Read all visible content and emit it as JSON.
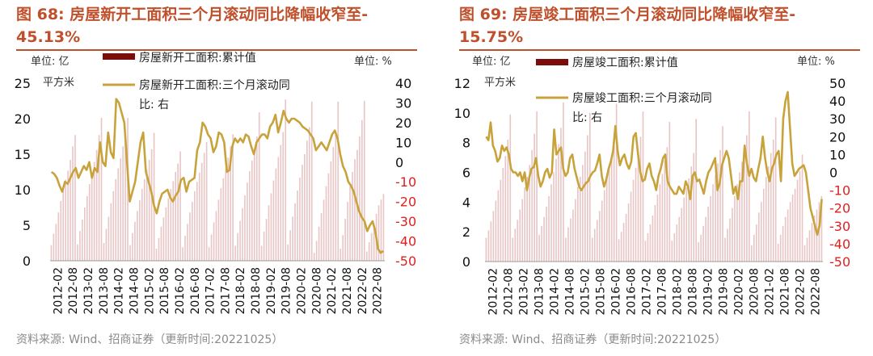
{
  "charts": [
    {
      "title_line1": "图 68:  房屋新开工面积三个月滚动同比降幅收窄至-",
      "title_line2": "45.13%",
      "source": "资料来源:  Wind、招商证券（更新时间:20221025）",
      "left_unit_label": "单位:  亿",
      "left_unit_label2": "平方米",
      "right_unit_label": "单位:  %",
      "legend_bar": "房屋新开工面积:累计值",
      "legend_line_1": "房屋新开工面积:三个月滚动同",
      "legend_line_2": "比:  右"
    },
    {
      "title_line1": "图 69:  房屋竣工面积三个月滚动同比降幅收窄至-",
      "title_line2": "15.75%",
      "source": "资料来源:  Wind、招商证券（更新时间:20221025）",
      "left_unit_label": "单位:  亿",
      "left_unit_label2": "平方米",
      "right_unit_label": "单位:  %",
      "legend_bar": "房屋竣工面积:累计值",
      "legend_line_1": "房屋竣工面积:三个月滚动同",
      "legend_line_2": "比:  右"
    }
  ],
  "chart_data": [
    {
      "type": "bar+line",
      "x_labels": [
        "2012-02",
        "2012-08",
        "2013-02",
        "2013-08",
        "2014-02",
        "2014-08",
        "2015-02",
        "2015-08",
        "2016-02",
        "2016-08",
        "2017-02",
        "2017-08",
        "2018-02",
        "2018-08",
        "2019-02",
        "2019-08",
        "2020-02",
        "2020-08",
        "2021-02",
        "2021-08",
        "2022-02",
        "2022-08"
      ],
      "ylim_left": [
        0,
        25
      ],
      "yticks_left": [
        0,
        5,
        10,
        15,
        20,
        25
      ],
      "ylim_right": [
        -50,
        40
      ],
      "yticks_right": [
        40,
        30,
        20,
        10,
        0,
        -10,
        -20,
        -30,
        -40,
        -50
      ],
      "series": [
        {
          "name": "房屋新开工面积:累计值",
          "axis": "left",
          "color": "#7b0d0d",
          "values": [
            2.2,
            3.8,
            5.2,
            6.8,
            8.4,
            10.0,
            11.4,
            12.7,
            14.2,
            16.1,
            17.7,
            2.3,
            4.2,
            5.8,
            7.5,
            9.1,
            10.8,
            12.4,
            13.9,
            15.6,
            17.7,
            20.1,
            2.5,
            4.5,
            6.2,
            8.1,
            9.8,
            11.5,
            13.0,
            14.4,
            16.1,
            18.0,
            20.1,
            2.2,
            3.9,
            5.5,
            7.0,
            8.5,
            10.1,
            11.5,
            12.8,
            14.2,
            15.7,
            18.0,
            1.7,
            3.2,
            4.8,
            6.1,
            7.5,
            8.8,
            10.1,
            11.2,
            12.5,
            13.7,
            15.4,
            1.9,
            3.5,
            5.2,
            6.8,
            8.3,
            9.8,
            11.1,
            12.4,
            13.8,
            15.2,
            16.7,
            1.9,
            3.7,
            5.4,
            7.0,
            8.6,
            10.2,
            11.6,
            12.9,
            14.5,
            16.1,
            17.8,
            2.1,
            3.9,
            5.6,
            7.4,
            9.2,
            11.0,
            12.6,
            14.1,
            15.8,
            17.5,
            20.9,
            2.1,
            4.1,
            5.9,
            7.8,
            9.5,
            11.3,
            13.0,
            14.6,
            16.3,
            18.1,
            22.7,
            2.3,
            4.3,
            6.2,
            8.1,
            9.9,
            11.7,
            13.5,
            15.0,
            16.9,
            18.8,
            22.4,
            1.1,
            2.8,
            4.8,
            6.7,
            8.6,
            10.5,
            12.3,
            14.0,
            16.0,
            18.0,
            22.4,
            1.7,
            3.6,
            5.9,
            8.3,
            10.5,
            12.5,
            14.3,
            15.6,
            17.5,
            19.8,
            22.5,
            1.3,
            2.6,
            3.9,
            5.2,
            6.6,
            7.8,
            8.6,
            9.4
          ]
        },
        {
          "name": "房屋新开工面积:三个月滚动同比:右",
          "axis": "right",
          "color": "#c8a33c",
          "values": [
            -5,
            -6,
            -8,
            -12,
            -15,
            -10,
            -11,
            -8,
            -5,
            -3,
            -8,
            -5,
            -2,
            -4,
            0,
            -8,
            -3,
            -5,
            10,
            0,
            -2,
            15,
            5,
            2,
            32,
            30,
            25,
            20,
            0,
            -20,
            -15,
            -10,
            0,
            10,
            15,
            -5,
            -10,
            -15,
            -22,
            -26,
            -20,
            -16,
            -15,
            -14,
            -18,
            -20,
            -17,
            -15,
            -9,
            -8,
            -15,
            -10,
            -9,
            -8,
            6,
            10,
            20,
            18,
            14,
            12,
            5,
            8,
            15,
            14,
            10,
            -5,
            -4,
            8,
            12,
            10,
            12,
            10,
            14,
            13,
            8,
            4,
            10,
            12,
            14,
            14,
            12,
            18,
            20,
            24,
            15,
            20,
            26,
            22,
            20,
            22,
            22,
            21,
            20,
            18,
            17,
            16,
            14,
            12,
            6,
            8,
            10,
            8,
            6,
            10,
            14,
            16,
            12,
            4,
            -2,
            -5,
            -10,
            -12,
            -15,
            -20,
            -25,
            -28,
            -30,
            -35,
            -32,
            -30,
            -35,
            -44,
            -46,
            -45
          ]
        }
      ]
    },
    {
      "type": "bar+line",
      "x_labels": [
        "2012-02",
        "2012-08",
        "2013-02",
        "2013-08",
        "2014-02",
        "2014-08",
        "2015-02",
        "2015-08",
        "2016-02",
        "2016-08",
        "2017-02",
        "2017-08",
        "2018-02",
        "2018-08",
        "2019-02",
        "2019-08",
        "2020-02",
        "2020-08",
        "2021-02",
        "2021-08",
        "2022-02",
        "2022-08"
      ],
      "ylim_left": [
        0,
        12
      ],
      "yticks_left": [
        0,
        2,
        4,
        6,
        8,
        10,
        12
      ],
      "ylim_right": [
        -50,
        50
      ],
      "yticks_right": [
        50,
        40,
        30,
        20,
        10,
        0,
        -10,
        -20,
        -30,
        -40,
        -50
      ],
      "series": [
        {
          "name": "房屋竣工面积:累计值",
          "axis": "left",
          "color": "#7b0d0d",
          "values": [
            1.6,
            2.1,
            2.7,
            3.4,
            4.1,
            4.8,
            5.5,
            6.3,
            7.1,
            8.2,
            9.9,
            1.6,
            2.2,
            2.8,
            3.5,
            4.2,
            5.0,
            5.7,
            6.5,
            7.5,
            8.6,
            10.1,
            1.8,
            2.4,
            3.0,
            3.7,
            4.4,
            5.2,
            6.0,
            6.9,
            7.9,
            9.0,
            10.7,
            1.6,
            2.3,
            2.9,
            3.5,
            4.2,
            5.0,
            5.7,
            6.5,
            7.4,
            8.5,
            10.0,
            1.6,
            2.2,
            2.8,
            3.4,
            4.1,
            4.8,
            5.5,
            6.3,
            7.2,
            8.4,
            10.6,
            1.5,
            2.0,
            2.6,
            3.2,
            3.9,
            4.7,
            5.5,
            6.3,
            7.3,
            8.4,
            10.1,
            1.4,
            1.9,
            2.5,
            3.1,
            3.8,
            4.5,
            5.2,
            5.9,
            6.8,
            7.7,
            9.4,
            1.4,
            1.9,
            2.5,
            3.0,
            3.6,
            4.3,
            5.0,
            5.6,
            6.4,
            7.3,
            9.6,
            1.3,
            1.8,
            2.4,
            3.0,
            3.7,
            4.4,
            5.2,
            5.8,
            6.6,
            7.5,
            9.1,
            1.6,
            2.2,
            2.9,
            3.6,
            4.4,
            5.2,
            6.0,
            6.7,
            7.6,
            8.5,
            10.1,
            1.1,
            1.8,
            2.5,
            3.3,
            4.0,
            4.9,
            5.7,
            6.4,
            7.3,
            8.2,
            9.7,
            1.2,
            1.8,
            2.4,
            3.0,
            3.5,
            4.0,
            4.5,
            4.9,
            5.5,
            6.1,
            7.2,
            1.1,
            1.6,
            2.1,
            2.6,
            3.1,
            3.5,
            4.0,
            4.4
          ]
        },
        {
          "name": "房屋竣工面积:三个月滚动同比:右",
          "axis": "right",
          "color": "#c8a33c",
          "values": [
            20,
            18,
            28,
            15,
            12,
            6,
            8,
            15,
            12,
            14,
            10,
            2,
            0,
            0,
            -2,
            0,
            -5,
            0,
            -10,
            -3,
            2,
            3,
            8,
            -2,
            -8,
            -5,
            0,
            2,
            -3,
            0,
            24,
            10,
            12,
            14,
            2,
            -2,
            0,
            8,
            10,
            2,
            -3,
            -8,
            -10,
            -8,
            -6,
            -5,
            -2,
            0,
            1,
            5,
            10,
            -2,
            -8,
            -4,
            2,
            6,
            12,
            26,
            12,
            4,
            8,
            10,
            5,
            2,
            6,
            20,
            22,
            10,
            0,
            -5,
            -4,
            2,
            5,
            -2,
            -5,
            -10,
            -2,
            2,
            8,
            10,
            -5,
            -8,
            -10,
            -12,
            -12,
            -8,
            -10,
            -12,
            -5,
            -8,
            -15,
            -2,
            0,
            -5,
            -4,
            -8,
            -12,
            -5,
            0,
            2,
            5,
            8,
            -10,
            -6,
            4,
            8,
            12,
            8,
            -2,
            -12,
            -8,
            -15,
            -5,
            -5,
            15,
            5,
            -2,
            2,
            -3,
            -5,
            2,
            8,
            20,
            8,
            0,
            -5,
            2,
            5,
            10,
            12,
            -5,
            30,
            40,
            45,
            25,
            5,
            -2,
            0,
            2,
            3,
            4,
            0,
            -10,
            -20,
            -25,
            -30,
            -35,
            -30,
            -15
          ]
        }
      ]
    }
  ]
}
